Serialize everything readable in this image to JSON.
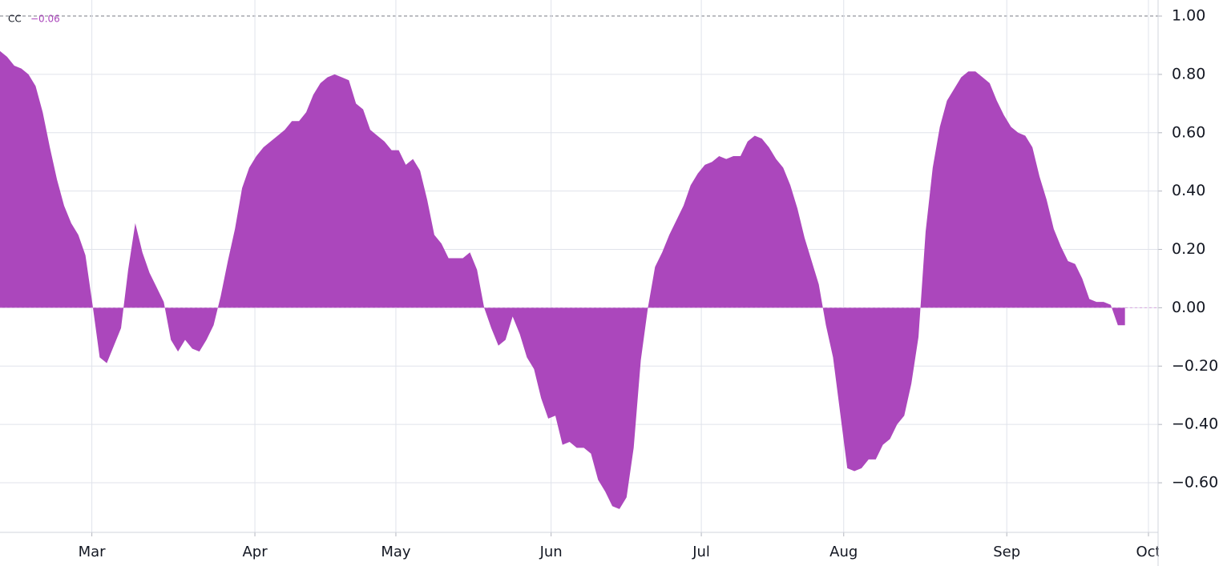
{
  "chart_data": {
    "type": "area",
    "legend_label": "CC",
    "legend_value_label": "−0.06",
    "series": [
      {
        "name": "CC",
        "color": "#ab47bc",
        "values": [
          0.88,
          0.86,
          0.83,
          0.82,
          0.8,
          0.76,
          0.67,
          0.55,
          0.44,
          0.35,
          0.29,
          0.25,
          0.18,
          0.01,
          -0.17,
          -0.19,
          -0.13,
          -0.07,
          0.13,
          0.29,
          0.19,
          0.12,
          0.07,
          0.02,
          -0.11,
          -0.15,
          -0.11,
          -0.14,
          -0.15,
          -0.11,
          -0.06,
          0.04,
          0.16,
          0.27,
          0.41,
          0.48,
          0.52,
          0.55,
          0.57,
          0.59,
          0.61,
          0.64,
          0.64,
          0.67,
          0.73,
          0.77,
          0.79,
          0.8,
          0.79,
          0.78,
          0.7,
          0.68,
          0.61,
          0.59,
          0.57,
          0.54,
          0.54,
          0.49,
          0.51,
          0.47,
          0.37,
          0.25,
          0.22,
          0.17,
          0.17,
          0.17,
          0.19,
          0.13,
          0.0,
          -0.07,
          -0.13,
          -0.11,
          -0.03,
          -0.09,
          -0.17,
          -0.21,
          -0.31,
          -0.38,
          -0.37,
          -0.47,
          -0.46,
          -0.48,
          -0.48,
          -0.5,
          -0.59,
          -0.63,
          -0.68,
          -0.69,
          -0.65,
          -0.48,
          -0.18,
          0.0,
          0.14,
          0.19,
          0.25,
          0.3,
          0.35,
          0.42,
          0.46,
          0.49,
          0.5,
          0.52,
          0.51,
          0.52,
          0.52,
          0.57,
          0.59,
          0.58,
          0.55,
          0.51,
          0.48,
          0.42,
          0.34,
          0.24,
          0.16,
          0.08,
          -0.06,
          -0.17,
          -0.36,
          -0.55,
          -0.56,
          -0.55,
          -0.52,
          -0.52,
          -0.47,
          -0.45,
          -0.4,
          -0.37,
          -0.26,
          -0.1,
          0.26,
          0.48,
          0.62,
          0.71,
          0.75,
          0.79,
          0.81,
          0.81,
          0.79,
          0.77,
          0.71,
          0.66,
          0.62,
          0.6,
          0.59,
          0.55,
          0.45,
          0.37,
          0.27,
          0.21,
          0.16,
          0.15,
          0.1,
          0.03,
          0.02,
          0.02,
          0.01,
          -0.06,
          -0.06
        ]
      }
    ],
    "x": [
      0,
      1,
      2,
      3,
      4,
      5,
      6,
      7,
      8,
      9,
      10,
      11,
      12,
      13,
      14,
      15,
      16,
      17,
      18,
      19,
      20,
      21,
      22,
      23,
      24,
      25,
      26,
      27,
      28,
      29,
      30,
      31,
      32,
      33,
      34,
      35,
      36,
      37,
      38,
      39,
      40,
      41,
      42,
      43,
      44,
      45,
      46,
      47,
      48,
      49,
      50,
      51,
      52,
      53,
      54,
      55,
      56,
      57,
      58,
      59,
      60,
      61,
      62,
      63,
      64,
      65,
      66,
      67,
      68,
      69,
      70,
      71,
      72,
      73,
      74,
      75,
      76,
      77,
      78,
      79,
      80,
      81,
      82,
      83,
      84,
      85,
      86,
      87,
      88,
      89,
      90,
      91,
      92,
      93,
      94,
      95,
      96,
      97,
      98,
      99,
      100,
      101,
      102,
      103,
      104,
      105,
      106,
      107,
      108,
      109,
      110,
      111,
      112,
      113,
      114,
      115,
      116,
      117,
      118,
      119,
      120,
      121,
      122,
      123,
      124,
      125,
      126,
      127,
      128,
      129,
      130,
      131,
      132,
      133,
      134,
      135,
      136,
      137,
      138,
      139,
      140,
      141,
      142,
      143,
      144,
      145,
      146,
      147,
      148,
      149,
      150,
      151,
      152,
      153,
      154,
      155,
      156,
      157,
      158
    ],
    "xlim": [
      0,
      161.3
    ],
    "xticks": [
      {
        "value": 12.9,
        "label": "Mar"
      },
      {
        "value": 35.8,
        "label": "Apr"
      },
      {
        "value": 55.6,
        "label": "May"
      },
      {
        "value": 77.4,
        "label": "Jun"
      },
      {
        "value": 98.5,
        "label": "Jul"
      },
      {
        "value": 118.5,
        "label": "Aug"
      },
      {
        "value": 141.4,
        "label": "Sep"
      },
      {
        "value": 161.3,
        "label": "Oct"
      }
    ],
    "ylim": [
      -0.77,
      1.055
    ],
    "yticks": [
      {
        "value": 1,
        "label": "1.00"
      },
      {
        "value": 0.8,
        "label": "0.80"
      },
      {
        "value": 0.6,
        "label": "0.60"
      },
      {
        "value": 0.4,
        "label": "0.40"
      },
      {
        "value": 0.2,
        "label": "0.20"
      },
      {
        "value": 0,
        "label": "0.00"
      },
      {
        "value": -0.2,
        "label": "−0.20"
      },
      {
        "value": -0.4,
        "label": "−0.40"
      },
      {
        "value": -0.6,
        "label": "−0.60"
      }
    ],
    "grid": true
  }
}
